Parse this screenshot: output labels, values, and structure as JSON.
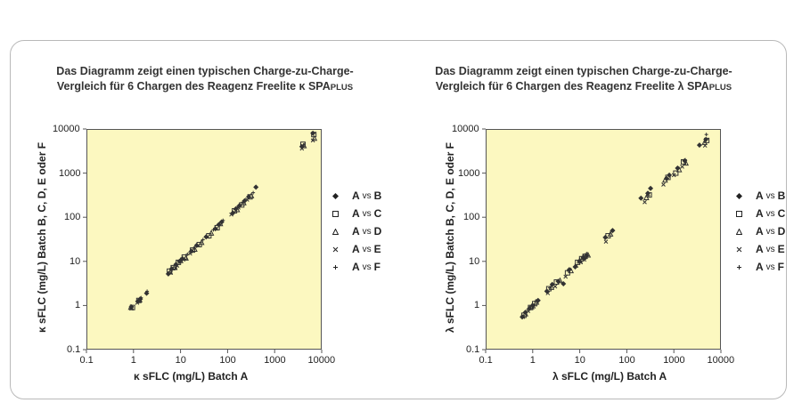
{
  "chart_data": [
    {
      "type": "scatter",
      "title": "Das Diagramm zeigt einen typischen Charge-zu-Charge-Vergleich für 6 Chargen des Reagenz Freelite κ SPAPLUS",
      "title_line1": "Das Diagramm zeigt einen typischen Charge-zu-Charge-",
      "title_line2_prefix": "Vergleich für 6 Chargen des Reagenz Freelite κ SPA",
      "title_line2_suffix": "PLUS",
      "xlabel": "κ sFLC (mg/L) Batch A",
      "ylabel": "κ sFLC (mg/L) Batch B, C, D, E oder F",
      "x_scale": "log",
      "y_scale": "log",
      "xlim": [
        0.1,
        10000
      ],
      "ylim": [
        0.1,
        10000
      ],
      "x_ticks": [
        "0.1",
        "1",
        "10",
        "100",
        "1000",
        "10000"
      ],
      "y_ticks": [
        "0.1",
        "1",
        "10",
        "100",
        "1000",
        "10000"
      ],
      "legend_position": "right",
      "background_color": "#fcf8c0",
      "series": [
        {
          "name": "A vs B",
          "marker": "diamond",
          "x": [
            0.9,
            1.25,
            1.4,
            1.9,
            5.5,
            6.5,
            8,
            9.5,
            11,
            17,
            22,
            35,
            55,
            65,
            75,
            130,
            150,
            180,
            230,
            280,
            400,
            3800,
            6500
          ],
          "y": [
            0.93,
            1.25,
            1.4,
            1.9,
            5.2,
            6.8,
            8.5,
            10,
            11.5,
            17,
            23,
            36,
            55,
            68,
            78,
            125,
            155,
            185,
            235,
            290,
            480,
            4000,
            8000
          ]
        },
        {
          "name": "A vs C",
          "marker": "square",
          "x": [
            0.95,
            1.3,
            5.8,
            7,
            9,
            12,
            18,
            25,
            40,
            60,
            140,
            200,
            300,
            4000,
            6800
          ],
          "y": [
            0.9,
            1.3,
            6,
            7.2,
            9.5,
            12.5,
            18,
            24,
            38,
            58,
            140,
            190,
            290,
            4500,
            7500
          ]
        },
        {
          "name": "A vs D",
          "marker": "triangle",
          "x": [
            0.88,
            1.35,
            6,
            7.5,
            10,
            13,
            20,
            28,
            45,
            70,
            160,
            220,
            320,
            4200,
            7000
          ],
          "y": [
            0.92,
            1.35,
            5.8,
            7.5,
            10.5,
            12,
            19,
            27,
            44,
            72,
            150,
            215,
            310,
            4200,
            6200
          ]
        },
        {
          "name": "A vs E",
          "marker": "x",
          "x": [
            0.9,
            1.2,
            6.2,
            7.8,
            8.5,
            11.5,
            16,
            24,
            38,
            58,
            120,
            170,
            260,
            3800,
            6500
          ],
          "y": [
            0.85,
            1.15,
            5.5,
            7,
            8,
            11,
            15,
            23,
            36,
            55,
            115,
            165,
            250,
            3600,
            5500
          ]
        },
        {
          "name": "A vs F",
          "marker": "plus",
          "x": [
            0.92,
            1.45,
            1.95,
            6.4,
            8.2,
            10.5,
            14,
            19,
            30,
            50,
            80,
            145,
            210,
            350,
            4100,
            6600
          ],
          "y": [
            0.95,
            1.5,
            2.1,
            6.6,
            8.6,
            11,
            14.5,
            20,
            31,
            52,
            85,
            150,
            220,
            360,
            4300,
            7800
          ]
        }
      ]
    },
    {
      "type": "scatter",
      "title": "Das Diagramm zeigt einen typischen Charge-zu-Charge-Vergleich für 6 Chargen des Reagenz Freelite λ SPAPLUS",
      "title_line1": "Das Diagramm zeigt einen typischen Charge-zu-Charge-",
      "title_line2_prefix": "Vergleich für 6 Chargen des Reagenz Freelite λ SPA",
      "title_line2_suffix": "PLUS",
      "xlabel": "λ sFLC (mg/L) Batch A",
      "ylabel": "λ sFLC (mg/L) Batch B, C, D, E oder F",
      "x_scale": "log",
      "y_scale": "log",
      "xlim": [
        0.1,
        10000
      ],
      "ylim": [
        0.1,
        10000
      ],
      "x_ticks": [
        "0.1",
        "1",
        "10",
        "100",
        "1000",
        "10000"
      ],
      "y_ticks": [
        "0.1",
        "1",
        "10",
        "100",
        "1000",
        "10000"
      ],
      "legend_position": "right",
      "background_color": "#fcf8c0",
      "series": [
        {
          "name": "A vs B",
          "marker": "diamond",
          "x": [
            0.6,
            0.7,
            0.85,
            1.0,
            1.3,
            2.0,
            2.6,
            3.5,
            4.5,
            6,
            8,
            10,
            12,
            14,
            35,
            50,
            200,
            280,
            320,
            700,
            800,
            1200,
            1700,
            3500,
            4800
          ],
          "y": [
            0.55,
            0.7,
            0.85,
            1.0,
            1.3,
            2.1,
            3.0,
            3.5,
            3.1,
            6.5,
            7.5,
            10,
            12,
            13.5,
            35,
            50,
            270,
            350,
            450,
            750,
            900,
            1300,
            1900,
            4300,
            5800
          ]
        },
        {
          "name": "A vs C",
          "marker": "square",
          "x": [
            0.65,
            0.9,
            1.1,
            2.2,
            3.2,
            5.5,
            9,
            11,
            13,
            40,
            300,
            750,
            1100,
            1600,
            5000
          ],
          "y": [
            0.6,
            0.9,
            1.1,
            2.4,
            3.4,
            5.5,
            9.5,
            11.5,
            13,
            38,
            320,
            800,
            1000,
            1800,
            5500
          ]
        },
        {
          "name": "A vs D",
          "marker": "triangle",
          "x": [
            0.7,
            0.95,
            1.2,
            2.5,
            3.8,
            6.5,
            10,
            12,
            15,
            45,
            260,
            650,
            1300,
            1800,
            4500
          ],
          "y": [
            0.65,
            0.95,
            1.2,
            2.6,
            3.7,
            6.2,
            10.5,
            12.5,
            14,
            42,
            280,
            700,
            1200,
            1700,
            5000
          ]
        },
        {
          "name": "A vs E",
          "marker": "x",
          "x": [
            0.62,
            0.8,
            1.05,
            2.1,
            3.0,
            5.0,
            8.5,
            10.5,
            12.5,
            36,
            240,
            600,
            1000,
            1500,
            4600
          ],
          "y": [
            0.55,
            0.75,
            0.95,
            1.9,
            2.7,
            4.5,
            8,
            9.5,
            11,
            28,
            220,
            550,
            900,
            1400,
            4200
          ]
        },
        {
          "name": "A vs F",
          "marker": "plus",
          "x": [
            0.68,
            0.88,
            1.15,
            2.3,
            3.4,
            5.8,
            9.5,
            11.5,
            14,
            48,
            290,
            720,
            1250,
            1750,
            4900
          ],
          "y": [
            0.7,
            0.92,
            1.25,
            2.5,
            3.6,
            6.0,
            10,
            12.5,
            15,
            50,
            310,
            760,
            1300,
            2000,
            7500
          ]
        }
      ]
    }
  ],
  "legend": [
    {
      "a": "A",
      "vs": "vs",
      "b": "B"
    },
    {
      "a": "A",
      "vs": "vs",
      "b": "C"
    },
    {
      "a": "A",
      "vs": "vs",
      "b": "D"
    },
    {
      "a": "A",
      "vs": "vs",
      "b": "E"
    },
    {
      "a": "A",
      "vs": "vs",
      "b": "F"
    }
  ]
}
